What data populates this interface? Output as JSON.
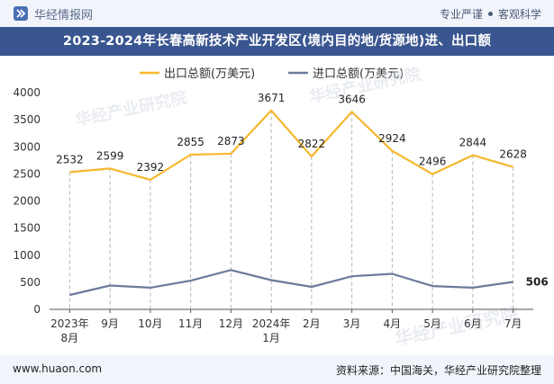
{
  "header": {
    "brand": "华经情报网",
    "tagline_part1": "专业严谨",
    "tagline_part2": "客观科学"
  },
  "footer": {
    "website": "www.huaon.com",
    "source": "资料来源：中国海关，华经产业研究院整理"
  },
  "colors": {
    "export": "#f5b82e",
    "import": "#6b7b9c",
    "title_bg": "#3a5690"
  },
  "chart_data": {
    "type": "line",
    "title": "2023-2024年长春高新技术产业开发区(境内目的地/货源地)进、出口额",
    "xlabel": "",
    "ylabel": "",
    "ylim": [
      0,
      4000
    ],
    "yticks": [
      0,
      500,
      1000,
      1500,
      2000,
      2500,
      3000,
      3500,
      4000
    ],
    "categories": [
      [
        "2023年",
        "8月"
      ],
      [
        "9月"
      ],
      [
        "10月"
      ],
      [
        "11月"
      ],
      [
        "12月"
      ],
      [
        "2024年",
        "1月"
      ],
      [
        "2月"
      ],
      [
        "3月"
      ],
      [
        "4月"
      ],
      [
        "5月"
      ],
      [
        "6月"
      ],
      [
        "7月"
      ]
    ],
    "series": [
      {
        "name": "出口总额(万美元)",
        "values": [
          2532,
          2599,
          2392,
          2855,
          2873,
          3671,
          2822,
          3646,
          2924,
          2496,
          2844,
          2628
        ],
        "labeled": true
      },
      {
        "name": "进口总额(万美元)",
        "values": [
          265,
          440,
          400,
          530,
          725,
          540,
          415,
          610,
          655,
          430,
          400,
          506
        ],
        "labeled_last_only": true
      }
    ],
    "legend_position": "top",
    "watermark": "华经产业研究院"
  }
}
